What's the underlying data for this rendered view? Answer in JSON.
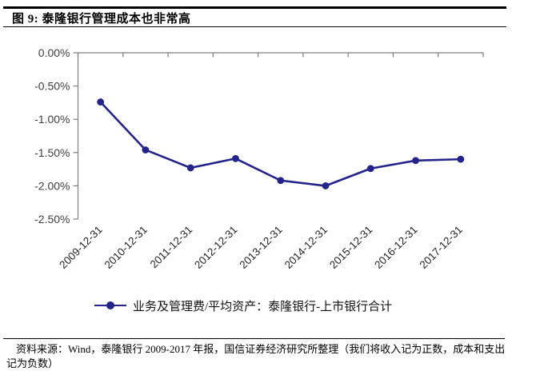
{
  "header": {
    "title": "图 9:  泰隆银行管理成本也非常高"
  },
  "chart_data": {
    "type": "line",
    "title": "泰隆银行管理成本也非常高",
    "categories": [
      "2009-12-31",
      "2010-12-31",
      "2011-12-31",
      "2012-12-31",
      "2013-12-31",
      "2014-12-31",
      "2015-12-31",
      "2016-12-31",
      "2017-12-31"
    ],
    "series": [
      {
        "name": "业务及管理费/平均资产：泰隆银行-上市银行合计",
        "values": [
          -0.74,
          -1.46,
          -1.73,
          -1.59,
          -1.92,
          -2.0,
          -1.74,
          -1.62,
          -1.6
        ]
      }
    ],
    "xlabel": "",
    "ylabel": "",
    "unit": "%",
    "ylim": [
      -2.5,
      0
    ],
    "y_ticks": [
      "0.00%",
      "-0.50%",
      "-1.00%",
      "-1.50%",
      "-2.00%",
      "-2.50%"
    ],
    "grid": false,
    "legend_position": "bottom",
    "line_color": "#23238C",
    "axis_color": "#7f7f7f"
  },
  "footer": {
    "source": "资料来源：Wind，泰隆银行 2009-2017 年报，国信证券经济研究所整理（我们将收入记为正数，成本和支出记为负数）"
  }
}
